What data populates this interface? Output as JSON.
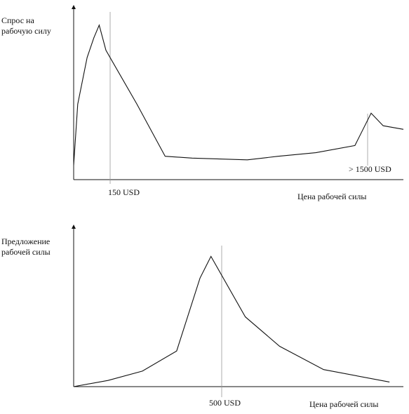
{
  "chart_data": [
    {
      "type": "line",
      "title": "",
      "ylabel": "Спрос на\nрабочую силу",
      "xlabel": "Цена рабочей силы",
      "annotations": [
        "150 USD",
        "> 1500 USD"
      ],
      "series": [
        {
          "x": [
            0,
            0.03,
            0.1,
            0.15,
            0.19,
            0.24,
            0.47,
            0.68,
            0.88,
            1.29,
            1.52,
            1.8,
            2.09,
            2.21,
            2.3,
            2.45
          ],
          "y": [
            0.08,
            0.42,
            0.68,
            0.79,
            0.86,
            0.72,
            0.42,
            0.13,
            0.12,
            0.11,
            0.13,
            0.15,
            0.19,
            0.37,
            0.3,
            0.28
          ]
        }
      ],
      "xlim": [
        0,
        2.45
      ],
      "ylim": [
        0,
        1
      ],
      "grid": false
    },
    {
      "type": "line",
      "title": "",
      "ylabel": "Предложение\nрабочей силы",
      "xlabel": "Цена рабочей силы",
      "annotations": [
        "500 USD"
      ],
      "series": [
        {
          "x": [
            0,
            0.25,
            0.5,
            0.75,
            0.92,
            1.0,
            1.25,
            1.5,
            1.82,
            2.3
          ],
          "y": [
            0.0,
            0.04,
            0.1,
            0.23,
            0.7,
            0.84,
            0.45,
            0.26,
            0.11,
            0.03
          ]
        }
      ],
      "xlim": [
        0,
        2.35
      ],
      "ylim": [
        0,
        1
      ],
      "grid": false
    }
  ]
}
